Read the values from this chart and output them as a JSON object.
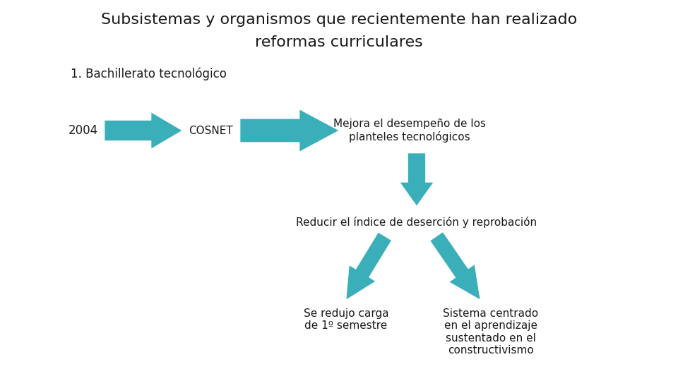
{
  "title_line1": "Subsistemas y organismos que recientemente han realizado",
  "title_line2": "reformas curriculares",
  "subtitle": "1. Bachillerato tecnológico",
  "label_2004": "2004",
  "label_cosnet": "COSNET",
  "label_mejora": "Mejora el desempeño de los\nplanteles tecnológicos",
  "label_reducir": "Reducir el índice de deserción y reprobación",
  "label_redujo": "Se redujo carga\nde 1º semestre",
  "label_sistema": "Sistema centrado\nen el aprendizaje\nsustentado en el\nconstructivismo",
  "arrow_color": "#3AAFB9",
  "bg_color": "#FFFFFF",
  "text_color": "#1a1a1a",
  "title_fontsize": 16,
  "subtitle_fontsize": 12,
  "label_fontsize": 11,
  "small_fontsize": 11
}
